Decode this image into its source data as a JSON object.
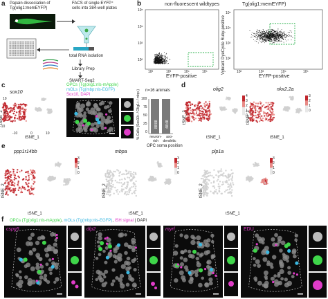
{
  "panel_a": {
    "letter": "a",
    "step1": "Papain dissociation of",
    "step1b": "Tg(olig1:memEYFP)",
    "facs1": "FACS of single EYFP⁺",
    "facs2": "cells into 384-well plates",
    "rna": "total RNA isolation",
    "lib": "Library Prep",
    "smart": "SMART-Seq2"
  },
  "panel_b": {
    "letter": "b",
    "left_title": "non-fluorescent wildtypes",
    "right_title": "Tg(olig1:memEYFP)",
    "xlabel": "EYFP-positive",
    "ylabel": "Vybrant DyeCycle Ruby-positive",
    "ticks_y": [
      "10⁵",
      "10⁴",
      "10³",
      "10²"
    ],
    "ticks_x": [
      "10²",
      "10³",
      "10⁴",
      "10⁵"
    ]
  },
  "panel_c": {
    "letter": "c",
    "gene": "sox10",
    "legend1": "OPCs (Tg(olig1:nls-mApple)",
    "legend2": "mOLs (Tg(mbp:nls-EGFP)",
    "legend3": "Sox10, DAPI",
    "n_label": "n=16 animals",
    "ylabel": "% Cells (Sox10+ / Olig1+ / mbp-)",
    "xlabel": "OPC soma position",
    "bar1_label": "neuron-rich",
    "bar2_label": "axo-dendritic",
    "bar1_value": "88/88",
    "bar2_value": "48/48",
    "yticks": [
      "100",
      "75",
      "50",
      "25",
      "0"
    ],
    "tsne_x": "tSNE_1",
    "tsne_y": "tSNE_2"
  },
  "panel_d": {
    "letter": "d",
    "gene1": "olig2",
    "gene2": "nkx2.2a"
  },
  "panel_e": {
    "letter": "e",
    "gene1": "ppp1r14bb",
    "gene2": "mbpa",
    "gene3": "plp1a"
  },
  "panel_f": {
    "letter": "f",
    "legend1": "OPCs (Tg(olig1:nls-mApple)",
    "legend2": "mOLs (Tg(mbp:nls-EGFP)",
    "legend3": "ISH signal",
    "legend4": "DAPI",
    "probe1": "cspg5",
    "probe2": "dlp2",
    "probe3": "myrf",
    "probe4": "EDU"
  },
  "tsne_common": {
    "xticks": [
      "-10",
      "0",
      "10"
    ],
    "yticks": [
      "10",
      "0",
      "-10"
    ],
    "scale": [
      "3",
      "2",
      "1",
      "0"
    ],
    "scale4": [
      "4",
      "3",
      "2",
      "1",
      "0"
    ],
    "xlabel": "tSNE_1",
    "ylabel": "tSNE_2"
  },
  "colors": {
    "high": "#c0272d",
    "mid": "#e88a86",
    "low": "#d0d0d0",
    "green": "#3fd64a",
    "magenta": "#e03cc8",
    "cyan": "#3ab7e0",
    "bar": "#7a7a7a"
  }
}
